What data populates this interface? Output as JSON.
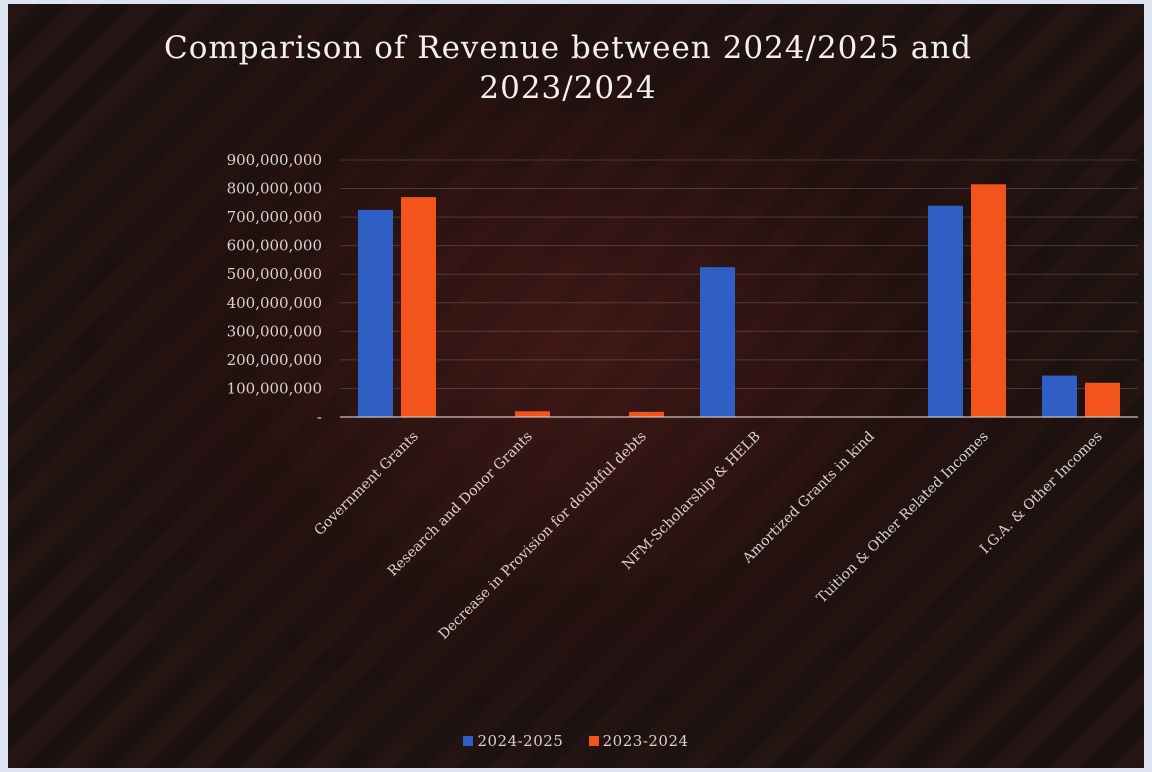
{
  "chart_data": {
    "type": "bar",
    "title": "Comparison of Revenue between 2024/2025 and 2023/2024",
    "title_lines": [
      "Comparison of Revenue between 2024/2025 and",
      "2023/2024"
    ],
    "xlabel": "",
    "ylabel": "",
    "ylim": [
      0,
      900000000
    ],
    "yticks": [
      0,
      100000000,
      200000000,
      300000000,
      400000000,
      500000000,
      600000000,
      700000000,
      800000000,
      900000000
    ],
    "ytick_labels": [
      "-",
      "100,000,000",
      "200,000,000",
      "300,000,000",
      "400,000,000",
      "500,000,000",
      "600,000,000",
      "700,000,000",
      "800,000,000",
      "900,000,000"
    ],
    "grid": true,
    "legend_position": "bottom",
    "categories": [
      "Government Grants",
      "Research and Donor Grants",
      "Decrease in Provision for doubtful debts",
      "NFM-Scholarship & HELB",
      "Amortized Grants in kind",
      "Tuition  & Other Related Incomes",
      "I.G.A. & Other Incomes"
    ],
    "series": [
      {
        "name": "2024-2025",
        "color": "#2f5fc4",
        "values": [
          725000000,
          0,
          0,
          525000000,
          2000000,
          740000000,
          145000000
        ]
      },
      {
        "name": "2023-2024",
        "color": "#f2541c",
        "values": [
          770000000,
          20000000,
          18000000,
          0,
          2000000,
          815000000,
          120000000
        ]
      }
    ]
  }
}
